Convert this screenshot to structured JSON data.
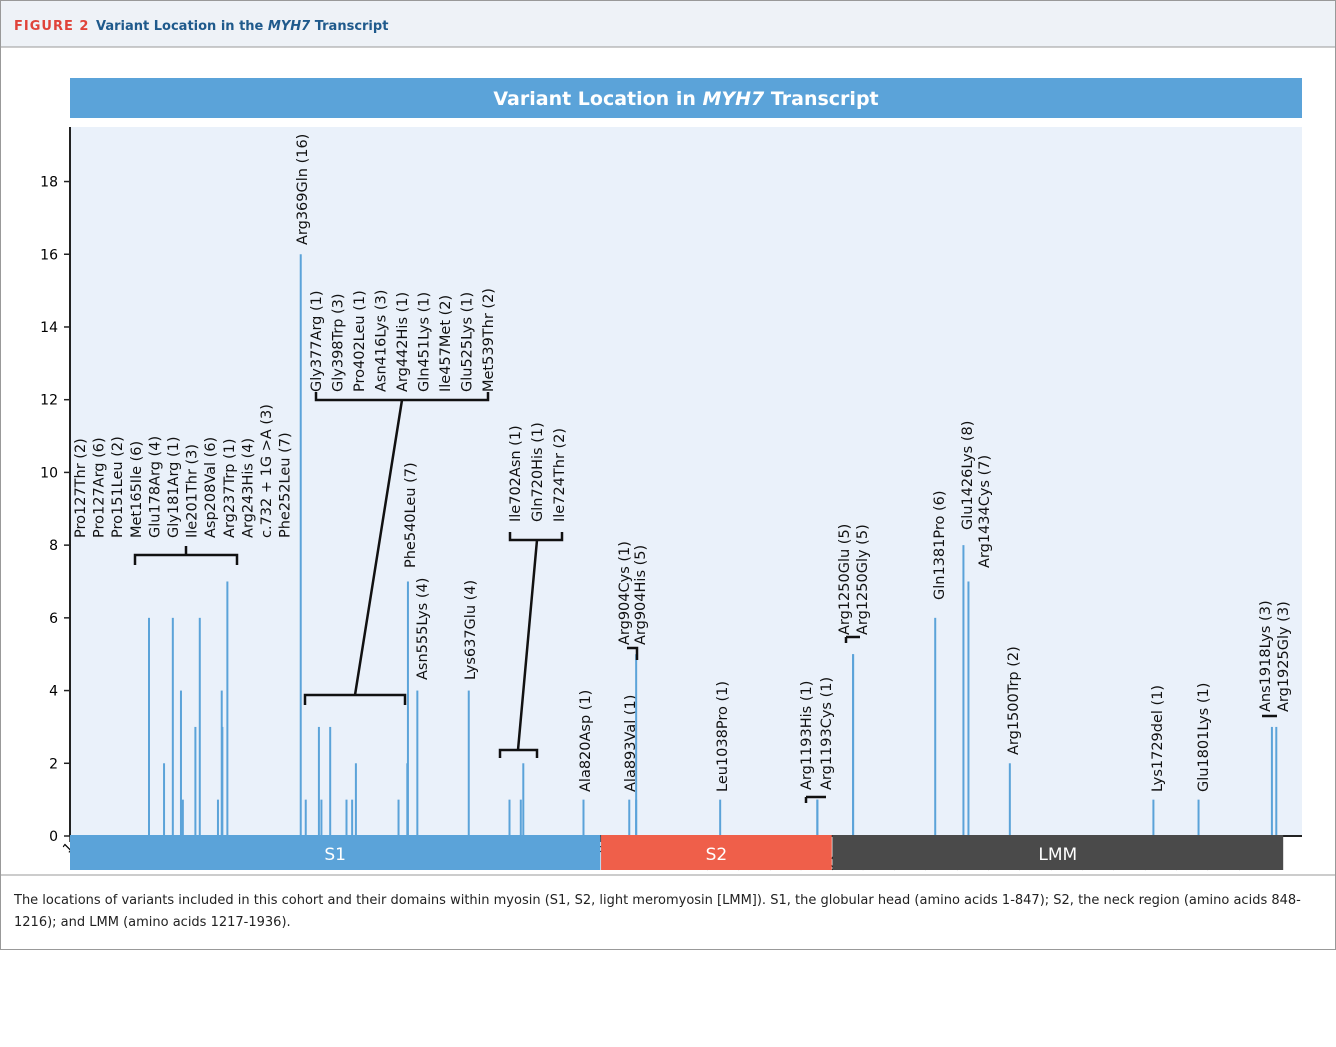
{
  "header": {
    "label": "FIGURE 2",
    "title_parts": [
      "Variant Location in the ",
      "MYH7",
      " Transcript"
    ]
  },
  "chart_data": {
    "type": "bar",
    "title_parts": [
      "Variant Location in ",
      "MYH7",
      " Transcript"
    ],
    "x": [
      127,
      127,
      151,
      165,
      178,
      181,
      201,
      208,
      237,
      243,
      244,
      252,
      369,
      377,
      398,
      402,
      416,
      442,
      451,
      457,
      525,
      539,
      540,
      555,
      637,
      702,
      720,
      724,
      820,
      893,
      904,
      904,
      1038,
      1193,
      1193,
      1250,
      1250,
      1381,
      1426,
      1434,
      1500,
      1729,
      1801,
      1918,
      1925
    ],
    "values": [
      2,
      6,
      2,
      6,
      4,
      1,
      3,
      6,
      1,
      4,
      3,
      7,
      16,
      1,
      3,
      1,
      3,
      1,
      1,
      2,
      1,
      2,
      7,
      4,
      4,
      1,
      1,
      2,
      1,
      1,
      1,
      5,
      1,
      1,
      1,
      5,
      5,
      6,
      8,
      7,
      2,
      1,
      1,
      3,
      3
    ],
    "labels": [
      "Pro127Thr (2)",
      "Pro127Arg (6)",
      "Pro151Leu (2)",
      "Met165Ile (6)",
      "Glu178Arg (4)",
      "Gly181Arg (1)",
      "Ile201Thr (3)",
      "Asp208Val (6)",
      "Arg237Trp (1)",
      "Arg243His (4)",
      "c.732 + 1G >A (3)",
      "Phe252Leu (7)",
      "Arg369Gln (16)",
      "Gly377Arg (1)",
      "Gly398Trp (3)",
      "Pro402Leu (1)",
      "Asn416Lys (3)",
      "Arg442His (1)",
      "Gln451Lys (1)",
      "Ile457Met (2)",
      "Glu525Lys (1)",
      "Met539Thr (2)",
      "Phe540Leu (7)",
      "Asn555Lys (4)",
      "Lys637Glu (4)",
      "Ile702Asn (1)",
      "Gln720His (1)",
      "Ile724Thr (2)",
      "Ala820Asp (1)",
      "Ala893Val (1)",
      "Arg904Cys (1)",
      "Arg904His (5)",
      "Leu1038Pro (1)",
      "Arg1193His (1)",
      "Arg1193Cys (1)",
      "Arg1250Glu (5)",
      "Arg1250Gly (5)",
      "Gln1381Pro (6)",
      "Glu1426Lys (8)",
      "Arg1434Cys (7)",
      "Arg1500Trp (2)",
      "Lys1729del (1)",
      "Glu1801Lys (1)",
      "Ans1918Lys (3)",
      "Arg1925Gly (3)"
    ],
    "color": "#5ba3d9",
    "xlim": [
      1,
      1966
    ],
    "ylim": [
      0,
      19.5
    ],
    "xticks": [
      1,
      51,
      101,
      150,
      199,
      249,
      299,
      349,
      399,
      449,
      499,
      549,
      599,
      649,
      699,
      748,
      798,
      848,
      898,
      947,
      997,
      1047,
      1097,
      1147,
      1196,
      1246,
      1295,
      1345,
      1395,
      1445,
      1495,
      1545,
      1595,
      1645,
      1695,
      1745,
      1795,
      1845,
      1895
    ],
    "yticks": [
      0,
      2,
      4,
      6,
      8,
      10,
      12,
      14,
      16,
      18
    ],
    "domains": [
      {
        "name": "S1",
        "start": 1,
        "end": 847,
        "color": "#5ba3d9"
      },
      {
        "name": "S2",
        "start": 848,
        "end": 1216,
        "color": "#ef5f4a"
      },
      {
        "name": "LMM",
        "start": 1217,
        "end": 1936,
        "color": "#4a4a4a"
      }
    ]
  },
  "caption": "The locations of variants included in this cohort and their domains within myosin (S1, S2, light meromyosin [LMM]). S1, the globular head (amino acids 1-847); S2, the neck region (amino acids 848-1216); and LMM (amino acids 1217-1936)."
}
